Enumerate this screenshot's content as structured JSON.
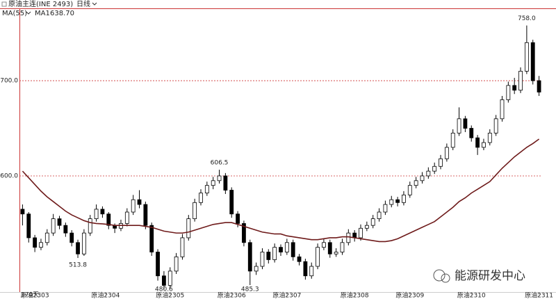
{
  "header": {
    "title": "原油主连(INE 2493)",
    "period": "日线",
    "indicator": "MA(55)",
    "watermark": "能源研发中心",
    "corner": "170天"
  },
  "chart_data": {
    "type": "candlestick",
    "ylim": [
      478,
      776
    ],
    "yticks": [
      {
        "value": 600,
        "label": "600.0"
      },
      {
        "value": 700,
        "label": "700.0"
      }
    ],
    "grid": true,
    "xticks": [
      {
        "value": 2,
        "label": "原油2303"
      },
      {
        "value": 13.5,
        "label": "原油2304"
      },
      {
        "value": 24,
        "label": "原油2305"
      },
      {
        "value": 34,
        "label": "原油2306"
      },
      {
        "value": 43,
        "label": "原油2307"
      },
      {
        "value": 54,
        "label": "原油2308"
      },
      {
        "value": 63,
        "label": "原油2309"
      },
      {
        "value": 73,
        "label": "原油2310"
      },
      {
        "value": 84,
        "label": "原油2311"
      }
    ],
    "up_color": "#000000",
    "down_color": "#000000",
    "candles": [
      [
        565,
        570,
        548,
        560
      ],
      [
        560,
        562,
        530,
        535
      ],
      [
        535,
        538,
        520,
        525
      ],
      [
        525,
        534,
        522,
        530
      ],
      [
        530,
        544,
        527,
        540
      ],
      [
        540,
        560,
        537,
        555
      ],
      [
        555,
        558,
        544,
        548
      ],
      [
        548,
        551,
        536,
        540
      ],
      [
        540,
        543,
        526,
        530
      ],
      [
        530,
        533,
        513.8,
        518
      ],
      [
        518,
        544,
        516,
        540
      ],
      [
        540,
        559,
        537,
        555
      ],
      [
        555,
        570,
        552,
        565
      ],
      [
        565,
        568,
        556,
        560
      ],
      [
        560,
        562,
        544,
        548
      ],
      [
        548,
        550,
        540,
        545
      ],
      [
        545,
        554,
        542,
        550
      ],
      [
        550,
        566,
        547,
        562
      ],
      [
        562,
        580,
        559,
        575
      ],
      [
        575,
        585,
        566,
        570
      ],
      [
        570,
        573,
        544,
        548
      ],
      [
        548,
        551,
        516,
        520
      ],
      [
        520,
        523,
        490,
        495
      ],
      [
        495,
        500,
        480.6,
        485
      ],
      [
        485,
        504,
        482,
        500
      ],
      [
        500,
        519,
        497,
        515
      ],
      [
        515,
        539,
        512,
        535
      ],
      [
        535,
        559,
        532,
        555
      ],
      [
        555,
        576,
        552,
        572
      ],
      [
        572,
        586,
        569,
        582
      ],
      [
        582,
        594,
        579,
        590
      ],
      [
        590,
        599,
        586,
        595
      ],
      [
        595,
        606.5,
        592,
        600
      ],
      [
        600,
        603,
        581,
        585
      ],
      [
        585,
        588,
        556,
        560
      ],
      [
        560,
        563,
        546,
        550
      ],
      [
        550,
        553,
        526,
        530
      ],
      [
        530,
        533,
        485.3,
        500
      ],
      [
        500,
        509,
        496,
        505
      ],
      [
        505,
        524,
        502,
        520
      ],
      [
        520,
        523,
        508,
        512
      ],
      [
        512,
        529,
        509,
        525
      ],
      [
        525,
        528,
        516,
        520
      ],
      [
        520,
        534,
        517,
        530
      ],
      [
        530,
        533,
        511,
        515
      ],
      [
        515,
        518,
        506,
        510
      ],
      [
        510,
        513,
        491,
        495
      ],
      [
        495,
        509,
        492,
        505
      ],
      [
        505,
        529,
        502,
        525
      ],
      [
        525,
        534,
        522,
        530
      ],
      [
        530,
        533,
        514,
        518
      ],
      [
        518,
        524,
        515,
        520
      ],
      [
        520,
        534,
        517,
        530
      ],
      [
        530,
        544,
        527,
        540
      ],
      [
        540,
        543,
        531,
        535
      ],
      [
        535,
        549,
        532,
        545
      ],
      [
        545,
        552,
        542,
        548
      ],
      [
        548,
        559,
        545,
        555
      ],
      [
        555,
        566,
        552,
        562
      ],
      [
        562,
        574,
        559,
        570
      ],
      [
        570,
        579,
        567,
        575
      ],
      [
        575,
        578,
        568,
        572
      ],
      [
        572,
        584,
        569,
        580
      ],
      [
        580,
        594,
        577,
        590
      ],
      [
        590,
        599,
        587,
        595
      ],
      [
        595,
        604,
        592,
        600
      ],
      [
        600,
        609,
        597,
        605
      ],
      [
        605,
        614,
        602,
        610
      ],
      [
        610,
        622,
        607,
        618
      ],
      [
        618,
        634,
        615,
        630
      ],
      [
        630,
        649,
        627,
        645
      ],
      [
        645,
        672,
        642,
        660
      ],
      [
        660,
        663,
        646,
        650
      ],
      [
        650,
        653,
        636,
        640
      ],
      [
        640,
        643,
        622,
        630
      ],
      [
        630,
        639,
        627,
        635
      ],
      [
        635,
        649,
        632,
        645
      ],
      [
        645,
        664,
        642,
        660
      ],
      [
        660,
        684,
        657,
        680
      ],
      [
        680,
        699,
        677,
        695
      ],
      [
        695,
        703,
        686,
        690
      ],
      [
        690,
        714,
        687,
        710
      ],
      [
        710,
        758,
        707,
        740
      ],
      [
        740,
        743,
        696,
        700
      ],
      [
        700,
        705,
        684,
        688
      ]
    ],
    "series": [
      {
        "name": "MA1",
        "color": "#6e1a1a",
        "value_labels": [
          "638.70"
        ],
        "values": [
          605,
          598,
          591,
          584,
          578,
          573,
          568,
          563,
          559,
          556,
          553,
          551,
          550,
          549.6,
          549,
          548,
          548,
          548,
          548,
          548,
          547,
          546,
          544,
          542,
          541,
          540,
          540,
          541,
          543,
          545,
          547,
          549,
          550,
          551,
          551,
          549,
          547,
          545,
          543,
          541,
          540,
          539,
          539,
          537,
          536,
          535,
          534,
          533,
          533,
          534,
          535,
          535,
          536,
          536,
          535,
          534,
          533,
          532,
          531,
          531,
          532,
          534,
          537,
          540,
          543,
          546,
          549,
          552,
          557,
          562,
          567,
          573,
          577,
          582,
          586,
          590,
          594,
          601,
          608,
          614,
          620,
          625,
          630,
          634,
          638.7
        ]
      }
    ],
    "annotations": [
      {
        "value": 758,
        "label": "758.0"
      },
      {
        "value": 606.5,
        "label": "606.5"
      },
      {
        "value": 513.8,
        "label": "513.8"
      },
      {
        "value": 480.6,
        "label": "480.6"
      },
      {
        "value": 485.3,
        "label": "485.3"
      }
    ]
  }
}
